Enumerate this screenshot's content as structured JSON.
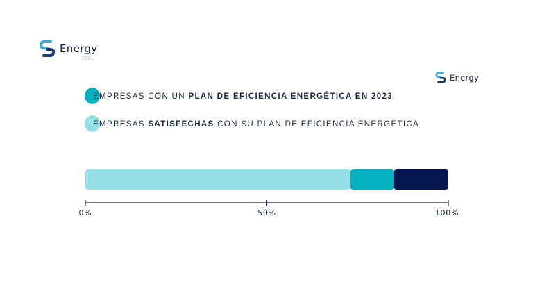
{
  "logo": {
    "name": "Energy",
    "tagline": "SPACE ENERGY",
    "colors": {
      "dark": "#1b3a73",
      "light": "#3aa8d8"
    }
  },
  "legend": [
    {
      "pre": "EMPRESAS CON UN ",
      "bold": "PLAN DE EFICIENCIA ENERGÉTICA EN 2023",
      "post": "",
      "color": "#05b1be"
    },
    {
      "pre": "EMPRESAS ",
      "bold": "SATISFECHAS",
      "post": " CON SU PLAN DE EFICIENCIA ENERGÉTICA",
      "color": "#97dfe6"
    }
  ],
  "chart_data": {
    "type": "bar",
    "orientation": "horizontal",
    "stacked": true,
    "segments": [
      {
        "value": 73,
        "color": "#97dfe6"
      },
      {
        "value": 12,
        "color": "#05b1be"
      },
      {
        "value": 15,
        "color": "#04164f"
      }
    ],
    "xlim": [
      0,
      100
    ],
    "ticks": [
      {
        "value": 0,
        "label": "0%"
      },
      {
        "value": 50,
        "label": "50%"
      },
      {
        "value": 100,
        "label": "100%"
      }
    ]
  }
}
